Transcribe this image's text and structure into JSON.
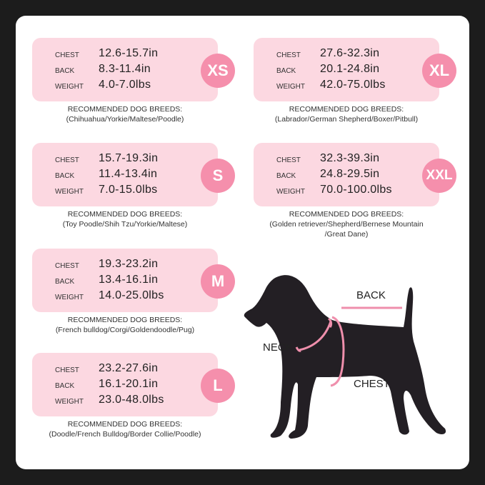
{
  "row_labels": {
    "chest": "CHEST",
    "back": "BACK",
    "weight": "WEIGHT"
  },
  "recommended_heading": "RECOMMENDED DOG BREEDS:",
  "sizes": [
    {
      "size": "XS",
      "chest": "12.6-15.7in",
      "back": "8.3-11.4in",
      "weight": "4.0-7.0lbs",
      "breeds": [
        "(Chihuahua/Yorkie/Maltese/Poodle)"
      ]
    },
    {
      "size": "S",
      "chest": "15.7-19.3in",
      "back": "11.4-13.4in",
      "weight": "7.0-15.0lbs",
      "breeds": [
        "(Toy Poodle/Shih Tzu/Yorkie/Maltese)"
      ]
    },
    {
      "size": "M",
      "chest": "19.3-23.2in",
      "back": "13.4-16.1in",
      "weight": "14.0-25.0lbs",
      "breeds": [
        "(French bulldog/Corgi/Goldendoodle/Pug)"
      ]
    },
    {
      "size": "L",
      "chest": "23.2-27.6in",
      "back": "16.1-20.1in",
      "weight": "23.0-48.0lbs",
      "breeds": [
        "(Doodle/French Bulldog/Border Collie/Poodle)"
      ]
    },
    {
      "size": "XL",
      "chest": "27.6-32.3in",
      "back": "20.1-24.8in",
      "weight": "42.0-75.0lbs",
      "breeds": [
        "(Labrador/German Shepherd/Boxer/Pitbull)"
      ]
    },
    {
      "size": "XXL",
      "chest": "32.3-39.3in",
      "back": "24.8-29.5in",
      "weight": "70.0-100.0lbs",
      "breeds": [
        "(Golden retriever/Shepherd/Bernese Mountain",
        "/Great Dane)"
      ]
    }
  ],
  "diagram": {
    "back": "BACK",
    "neck": "NECK",
    "chest": "CHEST"
  },
  "colors": {
    "card": "#fcd8e1",
    "badge": "#f58fac",
    "measure_line": "#ef8fac",
    "dog": "#231f24"
  }
}
